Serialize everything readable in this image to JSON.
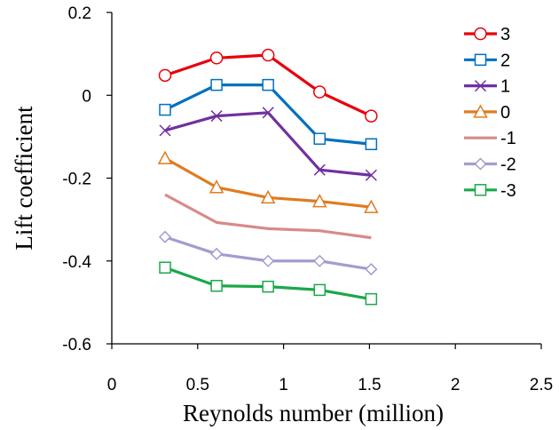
{
  "chart_data": {
    "type": "line",
    "title": "",
    "xlabel": "Reynolds number (million)",
    "ylabel": "Lift coefficient",
    "xlim": [
      0,
      2.5
    ],
    "ylim": [
      -0.6,
      0.2
    ],
    "xticks": [
      0,
      0.5,
      1,
      1.5,
      2,
      2.5
    ],
    "xtick_labels": [
      "0",
      "0.5",
      "1",
      "1.5",
      "2",
      "2.5"
    ],
    "yticks": [
      0.2,
      0,
      -0.2,
      -0.4,
      -0.6
    ],
    "ytick_labels": [
      "0.2",
      "0",
      "-0.2",
      "-0.4",
      "-0.6"
    ],
    "grid": false,
    "legend_position": "top-right",
    "x": [
      0.31,
      0.61,
      0.91,
      1.21,
      1.51
    ],
    "series": [
      {
        "name": "3",
        "color": "#e8000b",
        "marker": "circle",
        "values": [
          0.048,
          0.09,
          0.097,
          0.008,
          -0.05
        ]
      },
      {
        "name": "2",
        "color": "#0070c0",
        "marker": "square",
        "values": [
          -0.035,
          0.025,
          0.025,
          -0.105,
          -0.118
        ]
      },
      {
        "name": "1",
        "color": "#7030a0",
        "marker": "x",
        "values": [
          -0.085,
          -0.05,
          -0.042,
          -0.18,
          -0.193
        ]
      },
      {
        "name": "0",
        "color": "#e07b20",
        "marker": "triangle",
        "values": [
          -0.152,
          -0.222,
          -0.247,
          -0.256,
          -0.27
        ]
      },
      {
        "name": "-1",
        "color": "#d88a88",
        "marker": "none",
        "values": [
          -0.24,
          -0.307,
          -0.322,
          -0.327,
          -0.344
        ]
      },
      {
        "name": "-2",
        "color": "#a79ad0",
        "marker": "diamond",
        "values": [
          -0.342,
          -0.383,
          -0.4,
          -0.4,
          -0.42
        ]
      },
      {
        "name": "-3",
        "color": "#1aa84a",
        "marker": "square",
        "values": [
          -0.416,
          -0.46,
          -0.462,
          -0.47,
          -0.492
        ]
      }
    ]
  }
}
